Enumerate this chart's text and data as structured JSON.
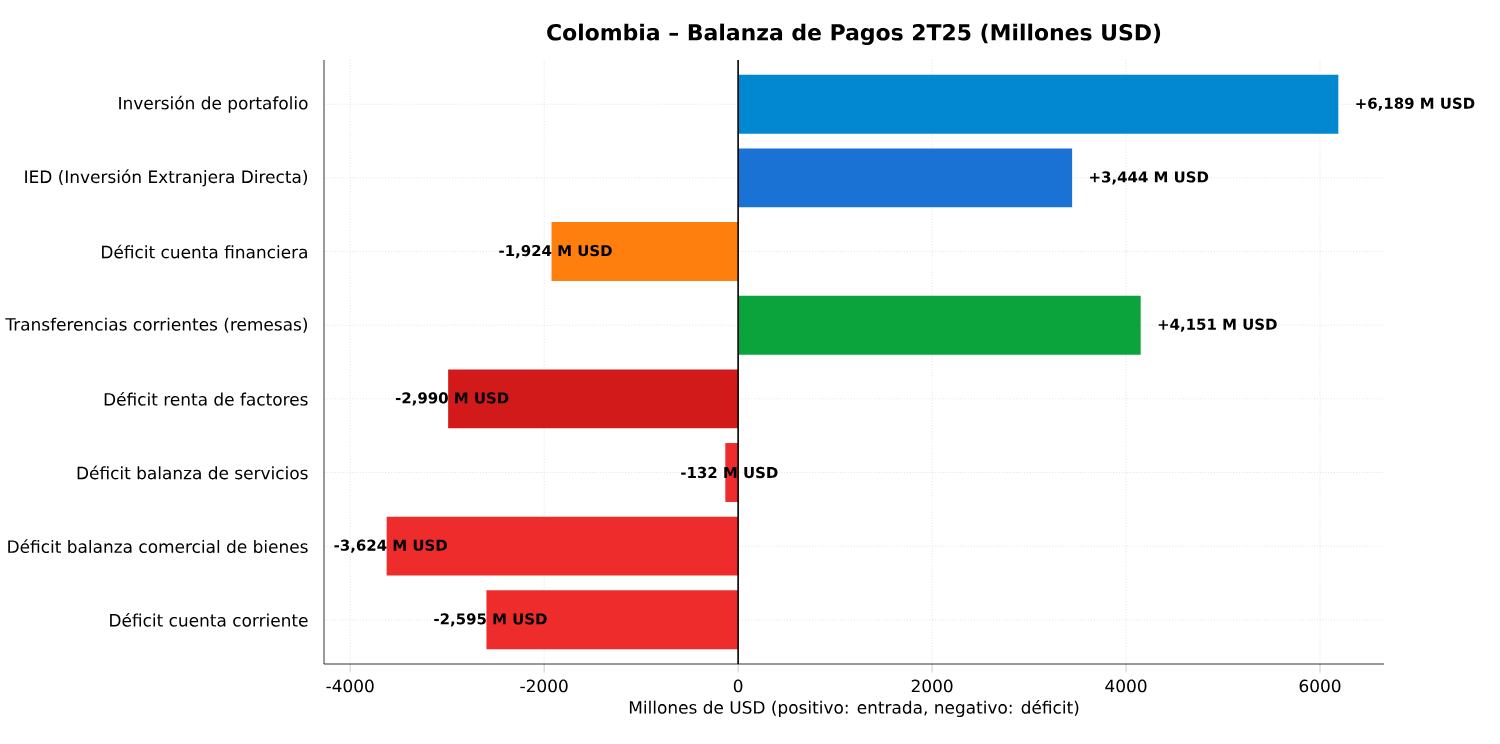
{
  "chart_data": {
    "type": "bar",
    "orientation": "horizontal",
    "title": "Colombia – Balanza de Pagos 2T25 (Millones USD)",
    "xlabel": "Millones de USD (positivo: entrada, negativo: déficit)",
    "categories": [
      "Inversión de portafolio",
      "IED (Inversión Extranjera Directa)",
      "Déficit cuenta financiera",
      "Transferencias corrientes (remesas)",
      "Déficit renta de factores",
      "Déficit balanza de servicios",
      "Déficit balanza comercial de bienes",
      "Déficit cuenta corriente"
    ],
    "values": [
      6189,
      3444,
      -1924,
      4151,
      -2990,
      -132,
      -3624,
      -2595
    ],
    "colors": [
      "#0288d1",
      "#1a73d4",
      "#ff7f0e",
      "#0aa33c",
      "#d21a1a",
      "#ee2c2c",
      "#ee2c2c",
      "#ee2c2c"
    ],
    "value_labels": [
      "+6,189 M USD",
      "+3,444 M USD",
      "-1,924 M USD",
      "+4,151 M USD",
      "-2,990 M USD",
      "-132 M USD",
      "-3,624 M USD",
      "-2,595 M USD"
    ],
    "xlim": [
      -4270,
      6660
    ],
    "xticks": [
      -4000,
      -2000,
      0,
      2000,
      4000,
      6000
    ],
    "ref_lines": [
      {
        "axis": "x",
        "value": 0,
        "color": "#000000"
      }
    ],
    "grid": true
  }
}
